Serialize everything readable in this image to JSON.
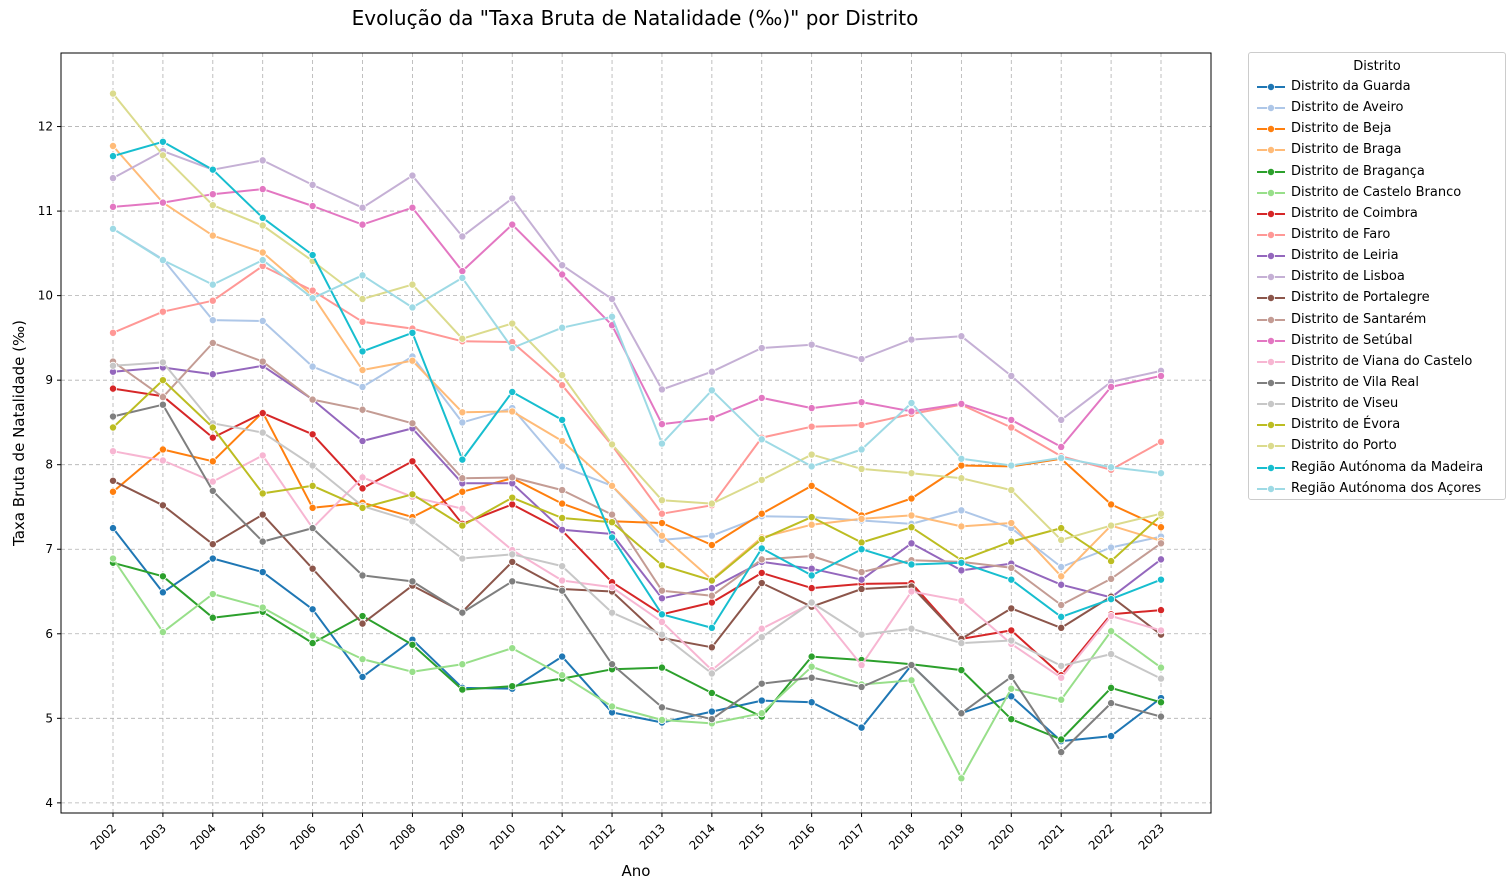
{
  "chart_data": {
    "type": "line",
    "title": "Evolução da \"Taxa Bruta de Natalidade (‰)\" por Distrito",
    "xlabel": "Ano",
    "ylabel": "Taxa Bruta de Natalidade (‰)",
    "ylim": [
      3.88,
      12.87
    ],
    "yticks": [
      4,
      5,
      6,
      7,
      8,
      9,
      10,
      11,
      12
    ],
    "grid": true,
    "legend_title": "Distrito",
    "legend_position": "outside-right",
    "categories": [
      "2002",
      "2003",
      "2004",
      "2005",
      "2006",
      "2007",
      "2008",
      "2009",
      "2010",
      "2011",
      "2012",
      "2013",
      "2014",
      "2015",
      "2016",
      "2017",
      "2018",
      "2019",
      "2020",
      "2021",
      "2022",
      "2023"
    ],
    "series": [
      {
        "name": "Distrito da Guarda",
        "color": "#1f77b4",
        "values": [
          7.25,
          6.49,
          6.89,
          6.73,
          6.29,
          5.49,
          5.93,
          5.36,
          5.35,
          5.73,
          5.07,
          4.95,
          5.08,
          5.21,
          5.19,
          4.89,
          5.63,
          5.06,
          5.26,
          4.73,
          4.79,
          5.24
        ]
      },
      {
        "name": "Distrito de Aveiro",
        "color": "#aec7e8",
        "values": [
          10.79,
          10.43,
          9.71,
          9.7,
          9.16,
          8.92,
          9.28,
          8.5,
          8.67,
          7.98,
          7.75,
          7.11,
          7.16,
          7.39,
          7.38,
          7.34,
          7.3,
          7.46,
          7.25,
          6.79,
          7.02,
          7.15
        ]
      },
      {
        "name": "Distrito de Beja",
        "color": "#ff7f0e",
        "values": [
          7.68,
          8.18,
          8.04,
          8.62,
          7.49,
          7.55,
          7.38,
          7.68,
          7.84,
          7.54,
          7.33,
          7.31,
          7.05,
          7.42,
          7.75,
          7.4,
          7.6,
          7.99,
          7.98,
          8.07,
          7.53,
          7.26
        ]
      },
      {
        "name": "Distrito de Braga",
        "color": "#ffbb78",
        "values": [
          11.77,
          11.1,
          10.71,
          10.51,
          10.0,
          9.12,
          9.23,
          8.62,
          8.63,
          8.28,
          7.75,
          7.16,
          6.64,
          7.14,
          7.29,
          7.36,
          7.4,
          7.27,
          7.31,
          6.68,
          7.28,
          7.1
        ]
      },
      {
        "name": "Distrito de Bragança",
        "color": "#2ca02c",
        "values": [
          6.84,
          6.68,
          6.19,
          6.26,
          5.89,
          6.21,
          5.87,
          5.34,
          5.38,
          5.47,
          5.58,
          5.6,
          5.3,
          5.02,
          5.73,
          5.69,
          5.64,
          5.57,
          4.99,
          4.75,
          5.36,
          5.19
        ]
      },
      {
        "name": "Distrito de Castelo Branco",
        "color": "#98df8a",
        "values": [
          6.89,
          6.02,
          6.47,
          6.31,
          5.98,
          5.7,
          5.55,
          5.64,
          5.83,
          5.51,
          5.14,
          4.98,
          4.94,
          5.06,
          5.61,
          5.4,
          5.45,
          4.29,
          5.35,
          5.22,
          6.03,
          5.6
        ]
      },
      {
        "name": "Distrito de Coimbra",
        "color": "#d62728",
        "values": [
          8.9,
          8.81,
          8.32,
          8.61,
          8.36,
          7.72,
          8.04,
          7.3,
          7.53,
          7.22,
          6.61,
          6.23,
          6.37,
          6.72,
          6.54,
          6.59,
          6.6,
          5.94,
          6.04,
          5.51,
          6.23,
          6.28
        ]
      },
      {
        "name": "Distrito de Faro",
        "color": "#ff9896",
        "values": [
          9.56,
          9.81,
          9.94,
          10.35,
          10.06,
          9.69,
          9.61,
          9.46,
          9.45,
          8.94,
          8.23,
          7.42,
          7.52,
          8.32,
          8.45,
          8.47,
          8.6,
          8.71,
          8.44,
          8.1,
          7.94,
          8.27
        ]
      },
      {
        "name": "Distrito de Leiria",
        "color": "#9467bd",
        "values": [
          9.1,
          9.15,
          9.07,
          9.17,
          8.77,
          8.28,
          8.43,
          7.78,
          7.78,
          7.23,
          7.18,
          6.42,
          6.54,
          6.85,
          6.77,
          6.64,
          7.07,
          6.75,
          6.83,
          6.58,
          6.43,
          6.88
        ]
      },
      {
        "name": "Distrito de Lisboa",
        "color": "#c5b0d5",
        "values": [
          11.39,
          11.71,
          11.49,
          11.6,
          11.31,
          11.04,
          11.42,
          10.7,
          11.15,
          10.36,
          9.96,
          8.89,
          9.1,
          9.38,
          9.42,
          9.25,
          9.48,
          9.52,
          9.05,
          8.53,
          8.98,
          9.11
        ]
      },
      {
        "name": "Distrito de Portalegre",
        "color": "#8c564b",
        "values": [
          7.81,
          7.52,
          7.06,
          7.41,
          6.77,
          6.12,
          6.57,
          6.26,
          6.85,
          6.53,
          6.5,
          5.95,
          5.84,
          6.6,
          6.32,
          6.53,
          6.56,
          5.94,
          6.3,
          6.07,
          6.44,
          5.99
        ]
      },
      {
        "name": "Distrito de Santarém",
        "color": "#c49c94",
        "values": [
          9.22,
          8.8,
          9.44,
          9.22,
          8.77,
          8.65,
          8.49,
          7.84,
          7.85,
          7.7,
          7.41,
          6.51,
          6.45,
          6.88,
          6.92,
          6.73,
          6.87,
          6.85,
          6.78,
          6.34,
          6.65,
          7.07
        ]
      },
      {
        "name": "Distrito de Setúbal",
        "color": "#e377c2",
        "values": [
          11.05,
          11.1,
          11.2,
          11.26,
          11.06,
          10.84,
          11.04,
          10.29,
          10.84,
          10.25,
          9.65,
          8.48,
          8.55,
          8.79,
          8.67,
          8.74,
          8.63,
          8.72,
          8.53,
          8.21,
          8.92,
          9.05
        ]
      },
      {
        "name": "Distrito de Viana do Castelo",
        "color": "#f7b6d2",
        "values": [
          8.16,
          8.05,
          7.8,
          8.11,
          7.25,
          7.85,
          7.62,
          7.48,
          6.99,
          6.63,
          6.55,
          6.14,
          5.57,
          6.06,
          6.36,
          5.63,
          6.5,
          6.39,
          5.88,
          5.48,
          6.21,
          6.04
        ]
      },
      {
        "name": "Distrito de Vila Real",
        "color": "#7f7f7f",
        "values": [
          8.57,
          8.71,
          7.69,
          7.09,
          7.25,
          6.69,
          6.62,
          6.25,
          6.62,
          6.51,
          5.64,
          5.13,
          4.99,
          5.41,
          5.48,
          5.37,
          5.63,
          5.06,
          5.49,
          4.6,
          5.18,
          5.02
        ]
      },
      {
        "name": "Distrito de Viseu",
        "color": "#c7c7c7",
        "values": [
          9.17,
          9.21,
          8.49,
          8.38,
          7.99,
          7.51,
          7.33,
          6.89,
          6.94,
          6.8,
          6.25,
          5.99,
          5.53,
          5.96,
          6.37,
          5.99,
          6.06,
          5.89,
          5.92,
          5.62,
          5.76,
          5.47
        ]
      },
      {
        "name": "Distrito de Évora",
        "color": "#bcbd22",
        "values": [
          8.44,
          9.0,
          8.44,
          7.66,
          7.75,
          7.49,
          7.65,
          7.28,
          7.61,
          7.37,
          7.32,
          6.81,
          6.63,
          7.12,
          7.38,
          7.08,
          7.26,
          6.87,
          7.09,
          7.25,
          6.86,
          7.4
        ]
      },
      {
        "name": "Distrito do Porto",
        "color": "#dbdb8d",
        "values": [
          12.39,
          11.66,
          11.07,
          10.83,
          10.41,
          9.96,
          10.13,
          9.49,
          9.67,
          9.06,
          8.24,
          7.58,
          7.54,
          7.82,
          8.12,
          7.95,
          7.9,
          7.84,
          7.7,
          7.11,
          7.28,
          7.42
        ]
      },
      {
        "name": "Região Autónoma da Madeira",
        "color": "#17becf",
        "values": [
          11.65,
          11.82,
          11.49,
          10.92,
          10.48,
          9.34,
          9.56,
          8.06,
          8.86,
          8.53,
          7.14,
          6.23,
          6.07,
          7.01,
          6.69,
          7.0,
          6.82,
          6.84,
          6.64,
          6.2,
          6.41,
          6.64
        ]
      },
      {
        "name": "Região Autónoma dos Açores",
        "color": "#9edae5",
        "values": [
          10.79,
          10.42,
          10.13,
          10.42,
          9.97,
          10.24,
          9.86,
          10.21,
          9.38,
          9.62,
          9.75,
          8.25,
          8.88,
          8.3,
          7.98,
          8.18,
          8.73,
          8.07,
          7.99,
          8.08,
          7.97,
          7.9
        ]
      }
    ]
  }
}
